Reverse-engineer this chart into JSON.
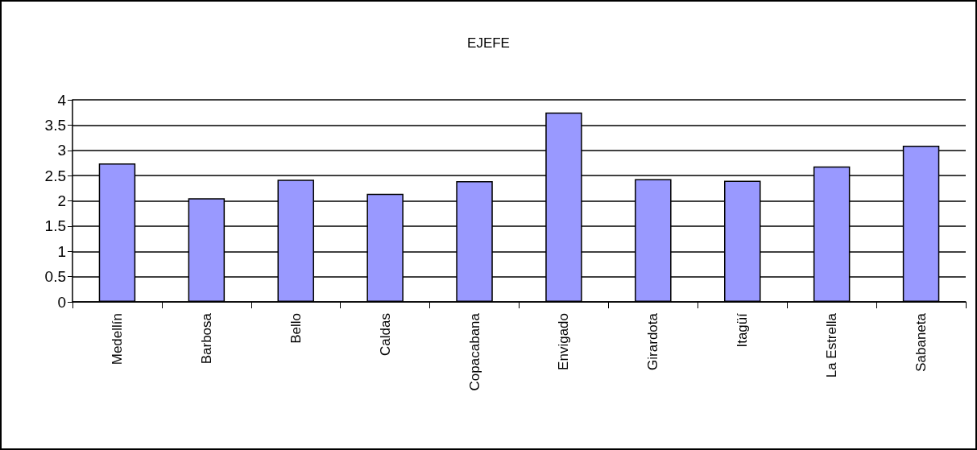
{
  "chart_data": {
    "type": "bar",
    "title": "EJEFE",
    "categories": [
      "Medellín",
      "Barbosa",
      "Bello",
      "Caldas",
      "Copacabana",
      "Envigado",
      "Girardota",
      "Itagüí",
      "La Estrella",
      "Sabaneta"
    ],
    "values": [
      2.74,
      2.05,
      2.42,
      2.14,
      2.39,
      3.75,
      2.43,
      2.4,
      2.68,
      3.09
    ],
    "color": "#9999ff",
    "ylim": [
      0,
      4
    ],
    "yticks": [
      0,
      0.5,
      1,
      1.5,
      2,
      2.5,
      3,
      3.5,
      4
    ],
    "grid": "y"
  }
}
